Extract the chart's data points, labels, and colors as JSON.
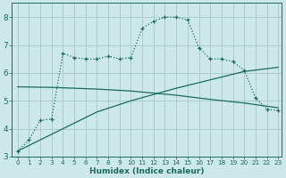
{
  "xlabel": "Humidex (Indice chaleur)",
  "bg_color": "#cce8e8",
  "grid_color": "#aacccc",
  "line_color": "#1a6b5a",
  "xlim_min": -0.5,
  "xlim_max": 23.3,
  "ylim_min": 3.0,
  "ylim_max": 8.5,
  "yticks": [
    3,
    4,
    5,
    6,
    7,
    8
  ],
  "xticks": [
    0,
    1,
    2,
    3,
    4,
    5,
    6,
    7,
    8,
    9,
    10,
    11,
    12,
    13,
    14,
    15,
    16,
    17,
    18,
    19,
    20,
    21,
    22,
    23
  ],
  "curve1_x": [
    0,
    1,
    2,
    3,
    4,
    5,
    6,
    7,
    8,
    9,
    10,
    11,
    12,
    13,
    14,
    15,
    16,
    17,
    18,
    19,
    20,
    21,
    22,
    23
  ],
  "curve1_y": [
    3.2,
    3.6,
    4.3,
    4.35,
    6.7,
    6.55,
    6.5,
    6.5,
    6.6,
    6.5,
    6.55,
    7.6,
    7.85,
    8.0,
    8.0,
    7.9,
    6.9,
    6.5,
    6.5,
    6.4,
    6.1,
    5.1,
    4.7,
    4.65
  ],
  "curve2_x": [
    0,
    3,
    7,
    10,
    14,
    17,
    20,
    23
  ],
  "curve2_y": [
    5.5,
    5.48,
    5.42,
    5.35,
    5.2,
    5.05,
    4.92,
    4.75
  ],
  "curve3_x": [
    0,
    3,
    7,
    10,
    14,
    17,
    20,
    23
  ],
  "curve3_y": [
    3.2,
    3.8,
    4.6,
    5.0,
    5.45,
    5.75,
    6.05,
    6.2
  ]
}
